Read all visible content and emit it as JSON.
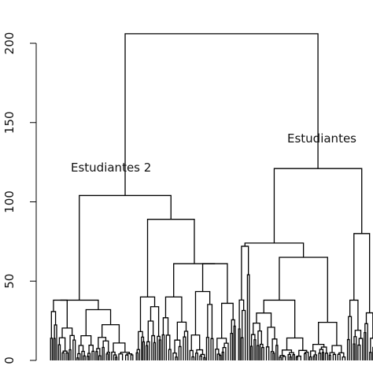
{
  "chart_data": {
    "type": "dendrogram",
    "title": "",
    "xlabel": "",
    "ylabel": "",
    "ylim": [
      0,
      220
    ],
    "yticks": [
      0,
      50,
      100,
      150,
      200
    ],
    "tick_labels": [
      "0",
      "50",
      "100",
      "150",
      "200"
    ],
    "annotations": [
      {
        "text": "Estudiantes 2",
        "height": 122
      },
      {
        "text": "Estudiantes",
        "height": 140
      }
    ],
    "merge_heights": {
      "root": 206,
      "estudiantes_2": 104,
      "estudiantes": 121,
      "sub_a": 38,
      "sub_b": 89,
      "sub_c": 74,
      "sub_d": 80
    },
    "line_color": "#000000"
  }
}
